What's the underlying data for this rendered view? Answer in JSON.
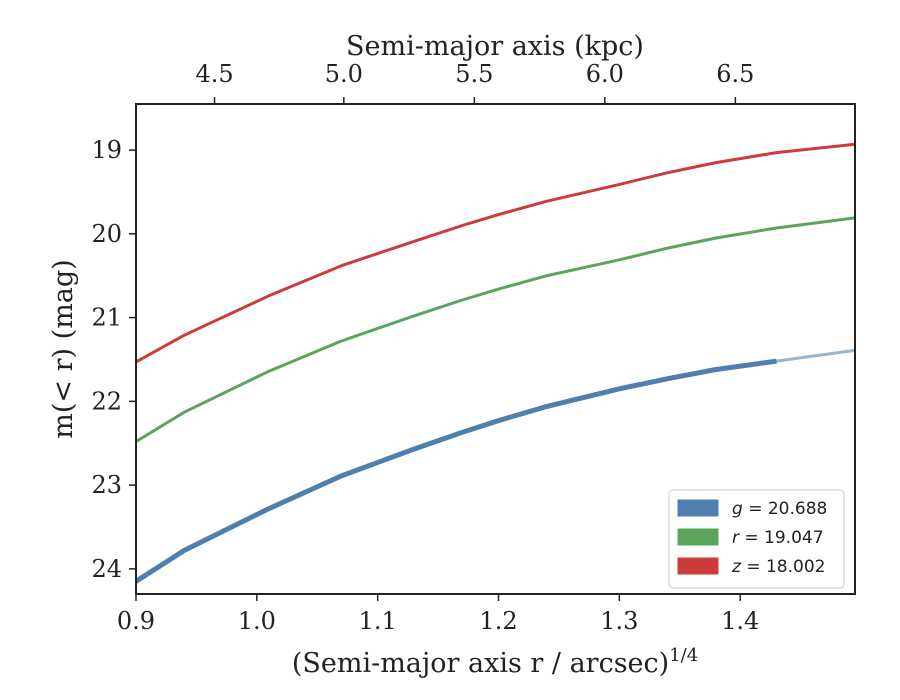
{
  "chart_data": {
    "type": "line",
    "xlabel": "(Semi-major axis r / arcsec)",
    "xlabel_exponent": "1/4",
    "ylabel": "m(< r) (mag)",
    "top_xlabel": "Semi-major axis (kpc)",
    "xlim": [
      0.9,
      1.495
    ],
    "ylim": [
      24.3,
      18.45
    ],
    "y_inverted": true,
    "x_ticks": [
      0.9,
      1.0,
      1.1,
      1.2,
      1.3,
      1.4
    ],
    "x_tick_labels": [
      "0.9",
      "1.0",
      "1.1",
      "1.2",
      "1.3",
      "1.4"
    ],
    "y_ticks": [
      19,
      20,
      21,
      22,
      23,
      24
    ],
    "y_tick_labels": [
      "19",
      "20",
      "21",
      "22",
      "23",
      "24"
    ],
    "top_ticks_x": [
      0.965,
      1.072,
      1.18,
      1.288,
      1.396
    ],
    "top_tick_labels": [
      "4.5",
      "5.0",
      "5.5",
      "6.0",
      "6.5"
    ],
    "legend_position": "lower-right",
    "series": [
      {
        "name": "g = 20.688",
        "legend_var": "g",
        "legend_value": "= 20.688",
        "color": "#4e7fae",
        "extension_color": "#9ab5cc",
        "width": 5,
        "x": [
          0.9,
          0.94,
          1.01,
          1.07,
          1.13,
          1.17,
          1.2,
          1.24,
          1.3,
          1.34,
          1.38,
          1.43
        ],
        "y": [
          24.15,
          23.78,
          23.28,
          22.89,
          22.57,
          22.37,
          22.23,
          22.06,
          21.85,
          21.73,
          21.62,
          21.52
        ],
        "extension_x": [
          1.43,
          1.46,
          1.495
        ],
        "extension_y": [
          21.52,
          21.46,
          21.39
        ]
      },
      {
        "name": "r = 19.047",
        "legend_var": "r",
        "legend_value": "= 19.047",
        "color": "#5ba55b",
        "width": 3,
        "x": [
          0.9,
          0.94,
          1.01,
          1.07,
          1.13,
          1.17,
          1.2,
          1.24,
          1.3,
          1.34,
          1.38,
          1.43,
          1.495
        ],
        "y": [
          22.48,
          22.13,
          21.64,
          21.28,
          20.98,
          20.79,
          20.66,
          20.5,
          20.31,
          20.17,
          20.05,
          19.93,
          19.81
        ]
      },
      {
        "name": "z = 18.002",
        "legend_var": "z",
        "legend_value": "= 18.002",
        "color": "#cd3b3b",
        "width": 3,
        "x": [
          0.9,
          0.94,
          1.01,
          1.07,
          1.13,
          1.17,
          1.2,
          1.24,
          1.3,
          1.34,
          1.38,
          1.43,
          1.495
        ],
        "y": [
          21.53,
          21.21,
          20.74,
          20.38,
          20.09,
          19.9,
          19.77,
          19.61,
          19.41,
          19.27,
          19.15,
          19.03,
          18.93
        ]
      }
    ]
  }
}
